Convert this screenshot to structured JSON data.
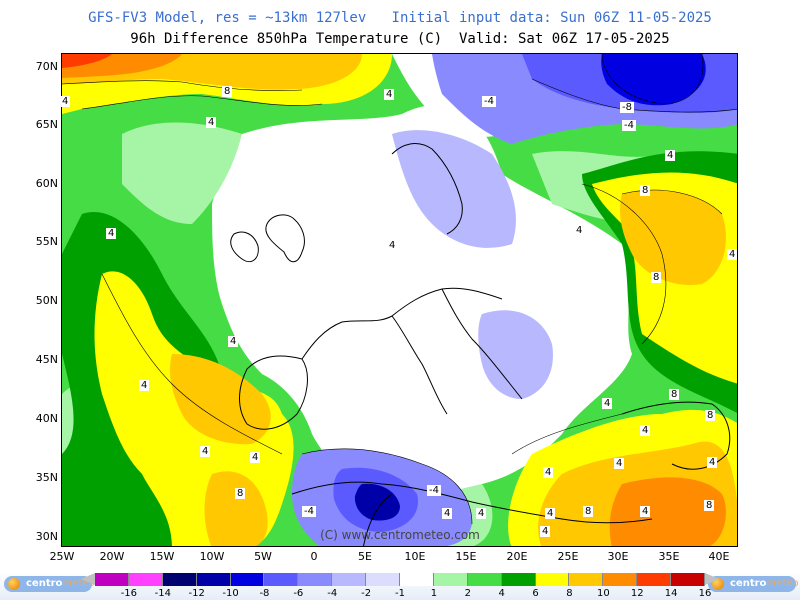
{
  "header": {
    "title_line1": "GFS-FV3 Model, res = ~13km 127lev   Initial input data: Sun 06Z 11-05-2025",
    "title_line2": "96h Difference 850hPa Temperature (C)  Valid: Sat 06Z 17-05-2025"
  },
  "map": {
    "copyright": "(C) www.centrometeo.com",
    "lat_labels": [
      "70N",
      "65N",
      "60N",
      "55N",
      "50N",
      "45N",
      "40N",
      "35N",
      "30N"
    ],
    "lon_labels": [
      "25W",
      "20W",
      "15W",
      "10W",
      "5W",
      "0",
      "5E",
      "10E",
      "15E",
      "20E",
      "25E",
      "30E",
      "35E",
      "40E"
    ],
    "contour_labels": [
      "8",
      "4",
      "4",
      "4",
      "-4",
      "-8",
      "-4",
      "4",
      "8",
      "4",
      "4",
      "4",
      "8",
      "4",
      "4",
      "4",
      "4",
      "4",
      "4",
      "4",
      "4",
      "8",
      "4",
      "4",
      "-4",
      "-4",
      "4",
      "8",
      "4",
      "8",
      "8",
      "4",
      "4",
      "4",
      "8"
    ]
  },
  "colorbar": {
    "ticks": [
      "-16",
      "-14",
      "-12",
      "-10",
      "-8",
      "-6",
      "-4",
      "-2",
      "-1",
      "1",
      "2",
      "4",
      "6",
      "8",
      "10",
      "12",
      "14",
      "16"
    ],
    "colors": [
      "#c000c0",
      "#ff40ff",
      "#000070",
      "#0000a8",
      "#0000e0",
      "#5a5aff",
      "#8a8aff",
      "#b8b8ff",
      "#dcdcff",
      "#ffffff",
      "#a6f5a6",
      "#46dc46",
      "#00a000",
      "#ffff00",
      "#ffc800",
      "#ff8c00",
      "#ff3c00",
      "#c80000"
    ]
  },
  "logo": {
    "brand_part1": "centro",
    "brand_part2": "meteo"
  }
}
